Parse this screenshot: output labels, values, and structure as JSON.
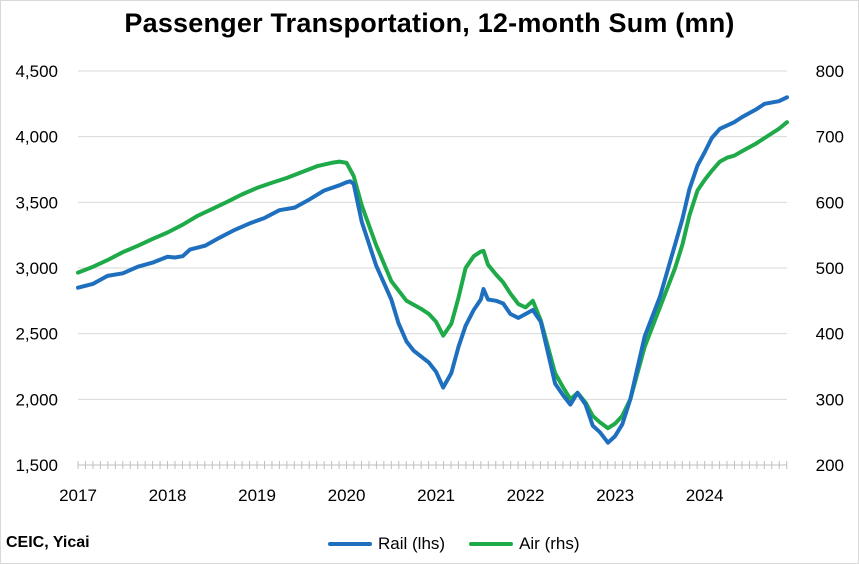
{
  "title": "Passenger Transportation, 12-month Sum  (mn)",
  "source": "CEIC, Yicai",
  "colors": {
    "rail": "#1f6fbf",
    "air": "#1faa4a",
    "grid": "#d9d9d9"
  },
  "chart_data": {
    "type": "line",
    "title": "Passenger Transportation, 12-month Sum  (mn)",
    "xlabel": "",
    "ylabel_left": "",
    "ylabel_right": "",
    "x_ticks": [
      "2017",
      "2018",
      "2019",
      "2020",
      "2021",
      "2022",
      "2023",
      "2024"
    ],
    "xlim": [
      2017.0,
      2024.92
    ],
    "ylim_left": [
      1500,
      4500
    ],
    "ylim_right": [
      200,
      800
    ],
    "y_ticks_left": [
      "4,500",
      "4,000",
      "3,500",
      "3,000",
      "2,500",
      "2,000",
      "1,500"
    ],
    "y_ticks_right": [
      "800",
      "700",
      "600",
      "500",
      "400",
      "300",
      "200"
    ],
    "grid": "horizontal",
    "legend_position": "bottom",
    "series": [
      {
        "name": "Rail (lhs)",
        "axis": "left",
        "points": [
          [
            2017.0,
            2850
          ],
          [
            2017.17,
            2880
          ],
          [
            2017.33,
            2940
          ],
          [
            2017.5,
            2960
          ],
          [
            2017.67,
            3010
          ],
          [
            2017.83,
            3040
          ],
          [
            2018.0,
            3085
          ],
          [
            2018.08,
            3080
          ],
          [
            2018.17,
            3090
          ],
          [
            2018.25,
            3140
          ],
          [
            2018.42,
            3170
          ],
          [
            2018.58,
            3230
          ],
          [
            2018.75,
            3290
          ],
          [
            2018.92,
            3340
          ],
          [
            2019.08,
            3380
          ],
          [
            2019.25,
            3440
          ],
          [
            2019.42,
            3460
          ],
          [
            2019.58,
            3520
          ],
          [
            2019.75,
            3590
          ],
          [
            2019.92,
            3630
          ],
          [
            2019.99,
            3650
          ],
          [
            2020.04,
            3660
          ],
          [
            2020.08,
            3640
          ],
          [
            2020.17,
            3350
          ],
          [
            2020.33,
            3020
          ],
          [
            2020.5,
            2760
          ],
          [
            2020.58,
            2580
          ],
          [
            2020.67,
            2440
          ],
          [
            2020.75,
            2370
          ],
          [
            2020.92,
            2280
          ],
          [
            2021.0,
            2210
          ],
          [
            2021.08,
            2090
          ],
          [
            2021.17,
            2200
          ],
          [
            2021.25,
            2400
          ],
          [
            2021.33,
            2560
          ],
          [
            2021.42,
            2680
          ],
          [
            2021.5,
            2760
          ],
          [
            2021.53,
            2840
          ],
          [
            2021.58,
            2760
          ],
          [
            2021.67,
            2750
          ],
          [
            2021.75,
            2730
          ],
          [
            2021.83,
            2650
          ],
          [
            2021.92,
            2620
          ],
          [
            2022.0,
            2650
          ],
          [
            2022.08,
            2680
          ],
          [
            2022.17,
            2590
          ],
          [
            2022.33,
            2120
          ],
          [
            2022.42,
            2030
          ],
          [
            2022.5,
            1960
          ],
          [
            2022.58,
            2050
          ],
          [
            2022.67,
            1960
          ],
          [
            2022.75,
            1800
          ],
          [
            2022.83,
            1750
          ],
          [
            2022.92,
            1670
          ],
          [
            2023.0,
            1720
          ],
          [
            2023.08,
            1810
          ],
          [
            2023.17,
            2000
          ],
          [
            2023.33,
            2480
          ],
          [
            2023.5,
            2780
          ],
          [
            2023.67,
            3180
          ],
          [
            2023.75,
            3370
          ],
          [
            2023.83,
            3600
          ],
          [
            2023.92,
            3780
          ],
          [
            2024.0,
            3880
          ],
          [
            2024.08,
            3990
          ],
          [
            2024.17,
            4060
          ],
          [
            2024.33,
            4110
          ],
          [
            2024.42,
            4150
          ],
          [
            2024.58,
            4210
          ],
          [
            2024.67,
            4250
          ],
          [
            2024.83,
            4270
          ],
          [
            2024.92,
            4300
          ]
        ]
      },
      {
        "name": "Air (rhs)",
        "axis": "right",
        "points": [
          [
            2017.0,
            493
          ],
          [
            2017.17,
            502
          ],
          [
            2017.33,
            512
          ],
          [
            2017.5,
            524
          ],
          [
            2017.67,
            534
          ],
          [
            2017.83,
            544
          ],
          [
            2018.0,
            554
          ],
          [
            2018.17,
            566
          ],
          [
            2018.33,
            579
          ],
          [
            2018.5,
            590
          ],
          [
            2018.67,
            601
          ],
          [
            2018.83,
            612
          ],
          [
            2019.0,
            622
          ],
          [
            2019.17,
            630
          ],
          [
            2019.33,
            637
          ],
          [
            2019.5,
            646
          ],
          [
            2019.67,
            655
          ],
          [
            2019.83,
            660
          ],
          [
            2019.92,
            662
          ],
          [
            2020.0,
            660
          ],
          [
            2020.08,
            640
          ],
          [
            2020.17,
            595
          ],
          [
            2020.33,
            535
          ],
          [
            2020.5,
            480
          ],
          [
            2020.67,
            450
          ],
          [
            2020.83,
            438
          ],
          [
            2020.92,
            430
          ],
          [
            2021.0,
            418
          ],
          [
            2021.08,
            397
          ],
          [
            2021.17,
            415
          ],
          [
            2021.25,
            455
          ],
          [
            2021.33,
            500
          ],
          [
            2021.42,
            518
          ],
          [
            2021.5,
            525
          ],
          [
            2021.53,
            526
          ],
          [
            2021.58,
            505
          ],
          [
            2021.67,
            490
          ],
          [
            2021.75,
            478
          ],
          [
            2021.83,
            461
          ],
          [
            2021.92,
            445
          ],
          [
            2022.0,
            440
          ],
          [
            2022.08,
            450
          ],
          [
            2022.17,
            420
          ],
          [
            2022.33,
            340
          ],
          [
            2022.42,
            318
          ],
          [
            2022.5,
            300
          ],
          [
            2022.58,
            310
          ],
          [
            2022.67,
            295
          ],
          [
            2022.75,
            275
          ],
          [
            2022.83,
            265
          ],
          [
            2022.92,
            256
          ],
          [
            2023.0,
            263
          ],
          [
            2023.08,
            275
          ],
          [
            2023.17,
            300
          ],
          [
            2023.33,
            380
          ],
          [
            2023.5,
            440
          ],
          [
            2023.67,
            500
          ],
          [
            2023.75,
            535
          ],
          [
            2023.83,
            580
          ],
          [
            2023.92,
            618
          ],
          [
            2024.0,
            634
          ],
          [
            2024.08,
            648
          ],
          [
            2024.17,
            662
          ],
          [
            2024.25,
            668
          ],
          [
            2024.33,
            671
          ],
          [
            2024.42,
            678
          ],
          [
            2024.58,
            690
          ],
          [
            2024.67,
            698
          ],
          [
            2024.83,
            712
          ],
          [
            2024.92,
            722
          ]
        ]
      }
    ]
  }
}
